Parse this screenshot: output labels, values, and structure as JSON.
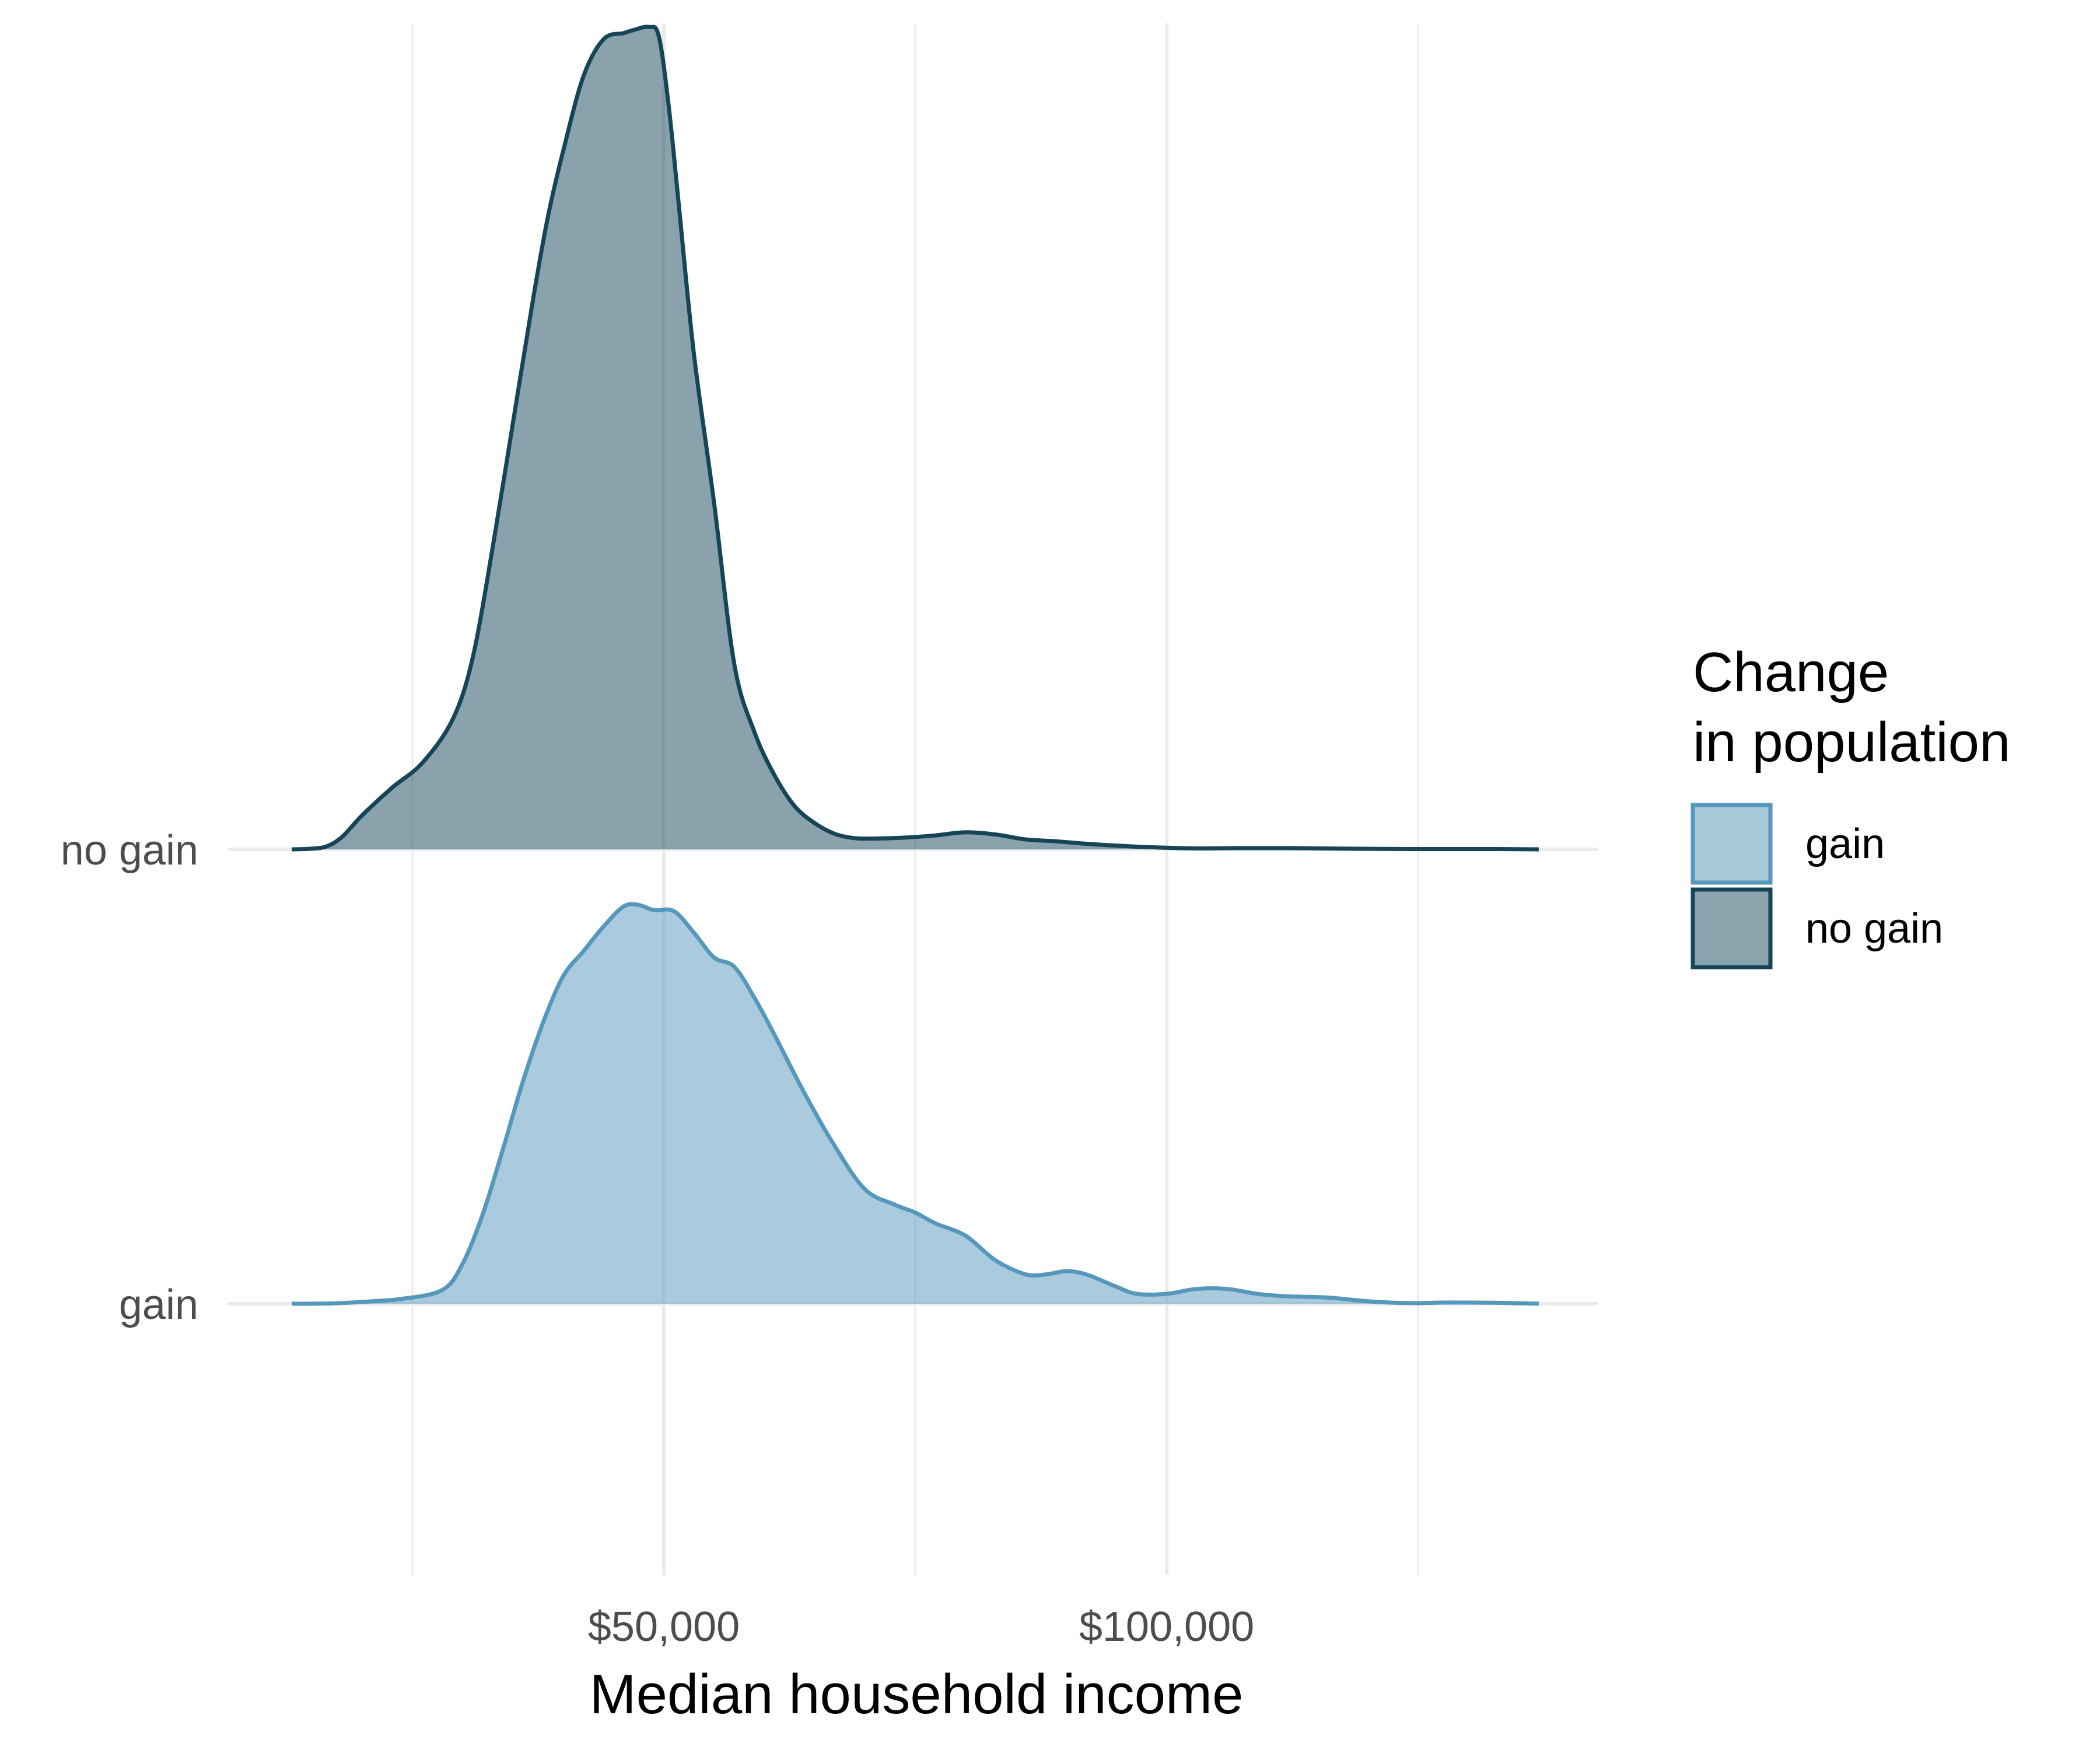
{
  "chart_data": {
    "type": "area",
    "subtype": "ridgeline-density",
    "xlabel": "Median household income",
    "ylabel": "",
    "title": "",
    "xlim": [
      7000,
      132000
    ],
    "x_ticks": [
      {
        "value": 50000,
        "label": "$50,000"
      },
      {
        "value": 100000,
        "label": "$100,000"
      }
    ],
    "x_minor_ticks": [
      25000,
      75000,
      125000
    ],
    "y_categories": [
      "gain",
      "no gain"
    ],
    "grid": true,
    "legend": {
      "title_lines": [
        "Change",
        "in population"
      ],
      "placement": "right",
      "entries": [
        {
          "name": "gain",
          "fill": "#A8CBDB",
          "stroke": "#5598BC"
        },
        {
          "name": "no gain",
          "fill": "#8AA4AE",
          "stroke": "#164557"
        }
      ]
    },
    "series": [
      {
        "name": "gain",
        "category": "gain",
        "fill": "#5598BC",
        "fill_opacity": 0.5,
        "stroke": "#5598BC",
        "x": [
          13000,
          17000,
          20000,
          24000,
          28000,
          30000,
          32000,
          34000,
          36000,
          38000,
          40000,
          42000,
          44000,
          46000,
          47500,
          49000,
          51000,
          53000,
          55000,
          57000,
          59000,
          61000,
          64000,
          67000,
          70000,
          73000,
          75000,
          77000,
          80000,
          83000,
          86000,
          88000,
          90000,
          92000,
          95000,
          97000,
          100000,
          103000,
          106000,
          109000,
          112000,
          116000,
          120000,
          124000,
          128000,
          133000,
          137000
        ],
        "y": [
          0,
          0.001,
          0.006,
          0.016,
          0.045,
          0.13,
          0.29,
          0.5,
          0.72,
          0.91,
          1.06,
          1.14,
          1.22,
          1.285,
          1.29,
          1.273,
          1.27,
          1.2,
          1.12,
          1.09,
          0.99,
          0.87,
          0.68,
          0.51,
          0.37,
          0.32,
          0.295,
          0.26,
          0.22,
          0.14,
          0.095,
          0.095,
          0.105,
          0.095,
          0.055,
          0.032,
          0.032,
          0.048,
          0.048,
          0.032,
          0.024,
          0.02,
          0.008,
          0.002,
          0.004,
          0.003,
          0
        ]
      },
      {
        "name": "no gain",
        "category": "no gain",
        "fill": "#164557",
        "fill_opacity": 0.5,
        "stroke": "#164557",
        "x": [
          13000,
          15000,
          16500,
          18000,
          20000,
          23000,
          26000,
          29000,
          31000,
          33000,
          35000,
          37000,
          38500,
          40000,
          42000,
          44000,
          46000,
          47000,
          48500,
          49500,
          50500,
          51500,
          53000,
          55000,
          57000,
          59000,
          61000,
          63000,
          65000,
          67000,
          69000,
          71000,
          74000,
          77000,
          80000,
          83000,
          86000,
          89000,
          92000,
          95000,
          99000,
          103000,
          107000,
          112000,
          118000,
          125000,
          132000,
          137000
        ],
        "y": [
          0,
          0.002,
          0.01,
          0.04,
          0.11,
          0.2,
          0.28,
          0.42,
          0.62,
          0.98,
          1.38,
          1.78,
          2.05,
          2.26,
          2.5,
          2.62,
          2.64,
          2.65,
          2.66,
          2.63,
          2.4,
          2.08,
          1.6,
          1.12,
          0.6,
          0.38,
          0.24,
          0.14,
          0.085,
          0.05,
          0.036,
          0.035,
          0.038,
          0.045,
          0.055,
          0.048,
          0.032,
          0.026,
          0.018,
          0.012,
          0.006,
          0.003,
          0.004,
          0.004,
          0.002,
          0.001,
          0.001,
          0
        ]
      }
    ]
  }
}
